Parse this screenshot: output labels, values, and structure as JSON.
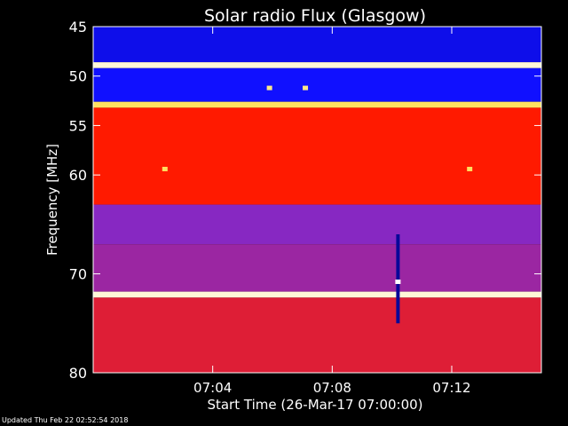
{
  "chart_data": {
    "type": "heatmap",
    "title": "Solar radio Flux (Glasgow)",
    "xlabel": "Start Time (26-Mar-17 07:00:00)",
    "ylabel": "Frequency [MHz]",
    "x_unit": "minutes after 07:00:00",
    "xlim": [
      0,
      15
    ],
    "ylim": [
      80,
      45
    ],
    "y_scale": "linear, frequency increasing downward",
    "x_ticks": [
      {
        "value": 4,
        "label": "07:04"
      },
      {
        "value": 8,
        "label": "07:08"
      },
      {
        "value": 12,
        "label": "07:12"
      }
    ],
    "y_ticks": [
      {
        "value": 45,
        "label": "45"
      },
      {
        "value": 50,
        "label": "50"
      },
      {
        "value": 55,
        "label": "55"
      },
      {
        "value": 60,
        "label": "60"
      },
      {
        "value": 70,
        "label": "70"
      },
      {
        "value": 80,
        "label": "80"
      }
    ],
    "colormap": [
      "#000030",
      "#1010ff",
      "#7a2ad8",
      "#ff1a00",
      "#ffe060",
      "#ffffff"
    ],
    "intensity_bands": [
      {
        "freq_range": [
          45,
          48.6
        ],
        "level": 0.18
      },
      {
        "freq_range": [
          48.6,
          49.2
        ],
        "level": 0.95
      },
      {
        "freq_range": [
          49.2,
          52.6
        ],
        "level": 0.2
      },
      {
        "freq_range": [
          52.6,
          53.2
        ],
        "level": 0.8
      },
      {
        "freq_range": [
          53.2,
          63
        ],
        "level": 0.6
      },
      {
        "freq_range": [
          63,
          67
        ],
        "level": 0.42
      },
      {
        "freq_range": [
          67,
          71.8
        ],
        "level": 0.45
      },
      {
        "freq_range": [
          71.8,
          72.4
        ],
        "level": 0.95
      },
      {
        "freq_range": [
          72.4,
          80
        ],
        "level": 0.55
      }
    ],
    "features": [
      {
        "type": "vertical_line",
        "time": 10.2,
        "freq_range": [
          66,
          75
        ],
        "level": 0.1
      },
      {
        "type": "spot",
        "time": 10.2,
        "freq": 70.8,
        "level": 1.0
      },
      {
        "type": "spot",
        "time": 7.1,
        "freq": 51.2,
        "level": 0.85
      },
      {
        "type": "spot",
        "time": 5.9,
        "freq": 51.2,
        "level": 0.85
      },
      {
        "type": "spot",
        "time": 2.4,
        "freq": 59.4,
        "level": 0.8
      },
      {
        "type": "spot",
        "time": 12.6,
        "freq": 59.4,
        "level": 0.8
      }
    ]
  },
  "footer": {
    "updated": "Updated Thu Feb 22 02:52:54 2018"
  }
}
